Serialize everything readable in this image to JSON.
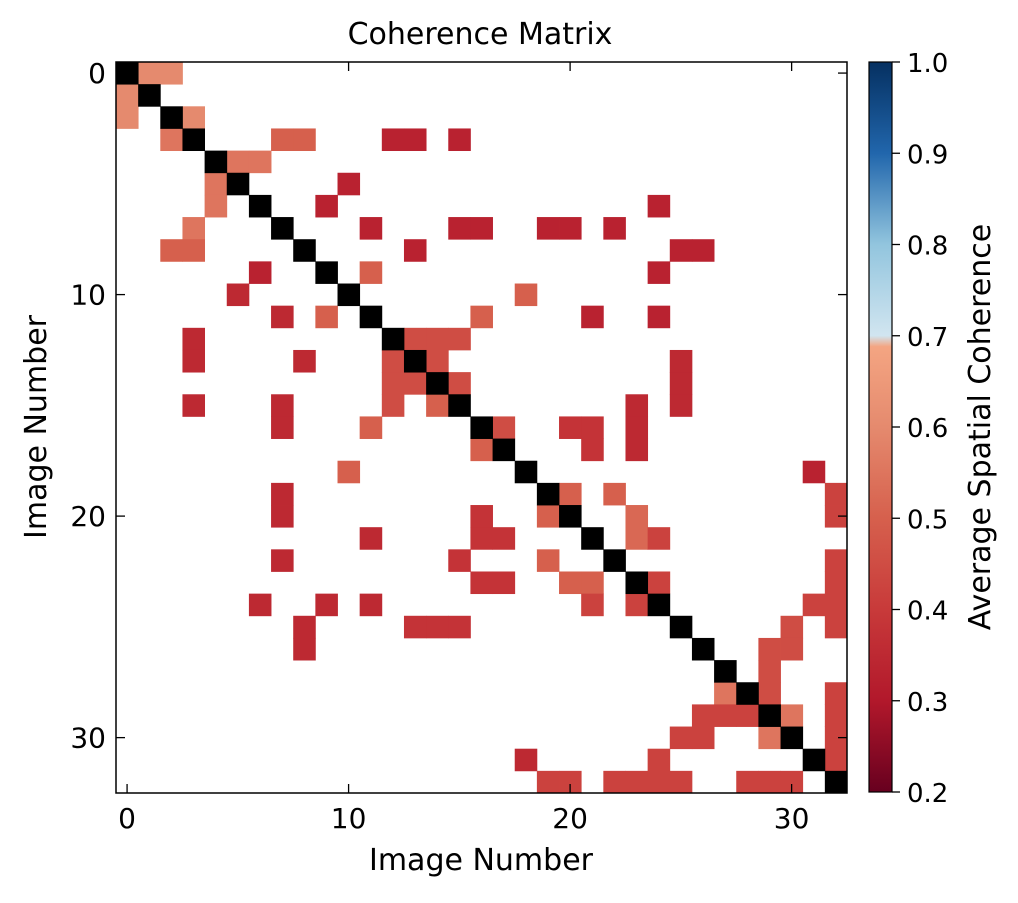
{
  "chart_data": {
    "type": "heatmap",
    "title": "Coherence Matrix",
    "xlabel": "Image Number",
    "ylabel": "Image Number",
    "size": 33,
    "x_ticks": [
      0,
      10,
      20,
      30
    ],
    "y_ticks": [
      0,
      10,
      20,
      30
    ],
    "colorbar": {
      "label": "Average Spatial Coherence",
      "range": [
        0.2,
        1.0
      ],
      "ticks": [
        "0.2",
        "0.3",
        "0.4",
        "0.5",
        "0.6",
        "0.7",
        "0.8",
        "0.9",
        "1.0"
      ],
      "colormap": "RdBu",
      "masked_range": [
        0.7,
        1.0
      ],
      "diagonal_color": "#000000"
    },
    "cells": [
      [
        0,
        1,
        0.6
      ],
      [
        0,
        2,
        0.6
      ],
      [
        1,
        0,
        0.6
      ],
      [
        2,
        0,
        0.6
      ],
      [
        2,
        3,
        0.6
      ],
      [
        3,
        2,
        0.55
      ],
      [
        3,
        7,
        0.5
      ],
      [
        3,
        8,
        0.5
      ],
      [
        3,
        12,
        0.33
      ],
      [
        3,
        13,
        0.33
      ],
      [
        3,
        15,
        0.33
      ],
      [
        4,
        5,
        0.55
      ],
      [
        4,
        6,
        0.55
      ],
      [
        5,
        4,
        0.55
      ],
      [
        5,
        10,
        0.33
      ],
      [
        6,
        4,
        0.55
      ],
      [
        6,
        9,
        0.33
      ],
      [
        6,
        24,
        0.33
      ],
      [
        7,
        3,
        0.55
      ],
      [
        7,
        11,
        0.33
      ],
      [
        7,
        15,
        0.33
      ],
      [
        7,
        16,
        0.33
      ],
      [
        7,
        19,
        0.33
      ],
      [
        7,
        20,
        0.33
      ],
      [
        7,
        22,
        0.33
      ],
      [
        8,
        2,
        0.5
      ],
      [
        8,
        3,
        0.5
      ],
      [
        8,
        13,
        0.33
      ],
      [
        8,
        25,
        0.33
      ],
      [
        8,
        26,
        0.33
      ],
      [
        9,
        6,
        0.33
      ],
      [
        9,
        11,
        0.5
      ],
      [
        9,
        24,
        0.33
      ],
      [
        10,
        5,
        0.35
      ],
      [
        10,
        18,
        0.5
      ],
      [
        11,
        7,
        0.35
      ],
      [
        11,
        9,
        0.5
      ],
      [
        11,
        16,
        0.5
      ],
      [
        11,
        21,
        0.33
      ],
      [
        11,
        24,
        0.33
      ],
      [
        12,
        3,
        0.35
      ],
      [
        12,
        13,
        0.45
      ],
      [
        12,
        14,
        0.45
      ],
      [
        12,
        15,
        0.45
      ],
      [
        13,
        3,
        0.35
      ],
      [
        13,
        8,
        0.35
      ],
      [
        13,
        12,
        0.45
      ],
      [
        13,
        14,
        0.45
      ],
      [
        13,
        25,
        0.35
      ],
      [
        14,
        12,
        0.45
      ],
      [
        14,
        13,
        0.45
      ],
      [
        14,
        15,
        0.45
      ],
      [
        14,
        25,
        0.35
      ],
      [
        15,
        3,
        0.35
      ],
      [
        15,
        7,
        0.35
      ],
      [
        15,
        12,
        0.45
      ],
      [
        15,
        14,
        0.5
      ],
      [
        15,
        23,
        0.35
      ],
      [
        15,
        25,
        0.35
      ],
      [
        16,
        7,
        0.35
      ],
      [
        16,
        11,
        0.5
      ],
      [
        16,
        17,
        0.45
      ],
      [
        16,
        20,
        0.38
      ],
      [
        16,
        21,
        0.38
      ],
      [
        16,
        23,
        0.35
      ],
      [
        17,
        16,
        0.5
      ],
      [
        17,
        21,
        0.38
      ],
      [
        17,
        23,
        0.35
      ],
      [
        18,
        10,
        0.5
      ],
      [
        18,
        31,
        0.33
      ],
      [
        19,
        7,
        0.35
      ],
      [
        19,
        20,
        0.5
      ],
      [
        19,
        22,
        0.5
      ],
      [
        19,
        32,
        0.42
      ],
      [
        20,
        7,
        0.35
      ],
      [
        20,
        16,
        0.38
      ],
      [
        20,
        19,
        0.5
      ],
      [
        20,
        23,
        0.52
      ],
      [
        20,
        32,
        0.42
      ],
      [
        21,
        11,
        0.35
      ],
      [
        21,
        16,
        0.38
      ],
      [
        21,
        17,
        0.38
      ],
      [
        21,
        23,
        0.52
      ],
      [
        21,
        24,
        0.42
      ],
      [
        22,
        7,
        0.35
      ],
      [
        22,
        15,
        0.38
      ],
      [
        22,
        19,
        0.5
      ],
      [
        22,
        32,
        0.42
      ],
      [
        23,
        16,
        0.38
      ],
      [
        23,
        17,
        0.38
      ],
      [
        23,
        20,
        0.5
      ],
      [
        23,
        21,
        0.5
      ],
      [
        23,
        24,
        0.42
      ],
      [
        23,
        32,
        0.42
      ],
      [
        24,
        6,
        0.35
      ],
      [
        24,
        9,
        0.35
      ],
      [
        24,
        11,
        0.35
      ],
      [
        24,
        21,
        0.42
      ],
      [
        24,
        23,
        0.42
      ],
      [
        24,
        31,
        0.42
      ],
      [
        24,
        32,
        0.42
      ],
      [
        25,
        8,
        0.35
      ],
      [
        25,
        13,
        0.38
      ],
      [
        25,
        14,
        0.38
      ],
      [
        25,
        15,
        0.38
      ],
      [
        25,
        30,
        0.45
      ],
      [
        25,
        32,
        0.42
      ],
      [
        26,
        8,
        0.35
      ],
      [
        26,
        29,
        0.45
      ],
      [
        26,
        30,
        0.45
      ],
      [
        27,
        29,
        0.45
      ],
      [
        28,
        27,
        0.55
      ],
      [
        28,
        29,
        0.45
      ],
      [
        28,
        32,
        0.42
      ],
      [
        29,
        26,
        0.42
      ],
      [
        29,
        27,
        0.42
      ],
      [
        29,
        28,
        0.42
      ],
      [
        29,
        30,
        0.55
      ],
      [
        29,
        32,
        0.42
      ],
      [
        30,
        25,
        0.42
      ],
      [
        30,
        26,
        0.42
      ],
      [
        30,
        29,
        0.55
      ],
      [
        30,
        32,
        0.42
      ],
      [
        31,
        18,
        0.35
      ],
      [
        31,
        24,
        0.42
      ],
      [
        31,
        32,
        0.42
      ],
      [
        32,
        19,
        0.42
      ],
      [
        32,
        20,
        0.42
      ],
      [
        32,
        22,
        0.42
      ],
      [
        32,
        23,
        0.42
      ],
      [
        32,
        24,
        0.42
      ],
      [
        32,
        25,
        0.42
      ],
      [
        32,
        28,
        0.42
      ],
      [
        32,
        29,
        0.42
      ],
      [
        32,
        30,
        0.42
      ]
    ]
  }
}
